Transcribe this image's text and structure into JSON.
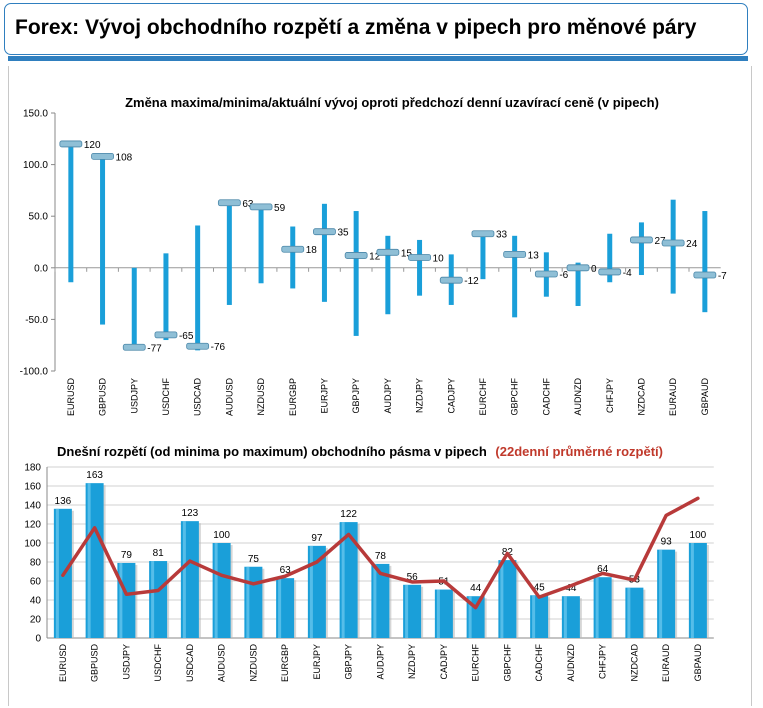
{
  "header": {
    "title": "Forex: Vývoj obchodního rozpětí a změna v pipech pro měnové páry"
  },
  "colors": {
    "accent": "#2f7fbf",
    "bar": "#1a9fd9",
    "line": "#b83a3a",
    "marker": "#8fbfd6"
  },
  "chart_data": [
    {
      "type": "bar",
      "subtype": "floating-range",
      "title": "Změna maxima/minima/aktuální vývoj oproti předchozí denní uzavírací ceně (v pipech)",
      "categories": [
        "EURUSD",
        "GBPUSD",
        "USDJPY",
        "USDCHF",
        "USDCAD",
        "AUDUSD",
        "NZDUSD",
        "EURGBP",
        "EURJPY",
        "GBPJPY",
        "AUDJPY",
        "NZDJPY",
        "CADJPY",
        "EURCHF",
        "GBPCHF",
        "CADCHF",
        "AUDNZD",
        "CHFJPY",
        "NZDCAD",
        "EURAUD",
        "GBPAUD"
      ],
      "high": [
        120,
        108,
        0,
        14,
        41,
        63,
        59,
        40,
        62,
        55,
        31,
        27,
        13,
        33,
        31,
        15,
        5,
        33,
        44,
        66,
        55
      ],
      "low": [
        -14,
        -55,
        -77,
        -70,
        -80,
        -36,
        -15,
        -20,
        -33,
        -66,
        -45,
        -27,
        -36,
        -11,
        -48,
        -28,
        -37,
        -14,
        -7,
        -25,
        -43
      ],
      "current": [
        120,
        108,
        -77,
        -65,
        -76,
        63,
        59,
        18,
        35,
        12,
        15,
        10,
        -12,
        33,
        13,
        -6,
        0,
        -4,
        27,
        24,
        -7
      ],
      "labels": [
        "120",
        "108",
        "-77",
        "-65",
        "-76",
        "63",
        "59",
        "18",
        "35",
        "12",
        "15",
        "10",
        "-12",
        "33",
        "13",
        "-6",
        "0",
        "-4",
        "27",
        "24",
        "-7"
      ],
      "ylim": [
        -100,
        150
      ],
      "yticks": [
        "150.0",
        "100.0",
        "50.0",
        "0.0",
        "-50.0",
        "-100.0"
      ],
      "grid": false
    },
    {
      "type": "bar",
      "title": "Dnešní rozpětí (od minima po maximum) obchodního pásma v pipech",
      "line_title": "(22denní průměrné rozpětí)",
      "categories": [
        "EURUSD",
        "GBPUSD",
        "USDJPY",
        "USDCHF",
        "USDCAD",
        "AUDUSD",
        "NZDUSD",
        "EURGBP",
        "EURJPY",
        "GBPJPY",
        "AUDJPY",
        "NZDJPY",
        "CADJPY",
        "EURCHF",
        "GBPCHF",
        "CADCHF",
        "AUDNZD",
        "CHFJPY",
        "NZDCAD",
        "EURAUD",
        "GBPAUD"
      ],
      "values": [
        136,
        163,
        79,
        81,
        123,
        100,
        75,
        63,
        97,
        122,
        78,
        56,
        51,
        44,
        82,
        45,
        44,
        64,
        53,
        93,
        100
      ],
      "labels": [
        "136",
        "163",
        "79",
        "81",
        "123",
        "100",
        "75",
        "63",
        "97",
        "122",
        "78",
        "56",
        "51",
        "44",
        "82",
        "45",
        "44",
        "64",
        "53",
        "93",
        "100"
      ],
      "average": [
        66,
        116,
        46,
        50,
        81,
        66,
        57,
        65,
        80,
        109,
        68,
        59,
        60,
        32,
        89,
        43,
        55,
        68,
        61,
        129,
        147
      ],
      "ylim": [
        0,
        180
      ],
      "yticks": [
        "180",
        "160",
        "140",
        "120",
        "100",
        "80",
        "60",
        "40",
        "20",
        "0"
      ],
      "grid": true
    }
  ]
}
